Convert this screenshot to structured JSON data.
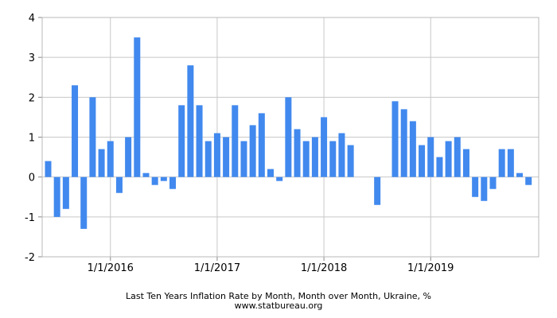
{
  "chart_data": {
    "type": "bar",
    "title": "Last Ten Years Inflation Rate by Month, Month over Month, Ukraine, %",
    "source": "www.statbureau.org",
    "xlabel": "",
    "ylabel": "",
    "ylim": [
      -2,
      4
    ],
    "yticks": [
      -2,
      -1,
      0,
      1,
      2,
      3,
      4
    ],
    "xticks": [
      {
        "label": "1/1/2016",
        "date": "2016-01"
      },
      {
        "label": "1/1/2017",
        "date": "2017-01"
      },
      {
        "label": "1/1/2018",
        "date": "2018-01"
      },
      {
        "label": "1/1/2019",
        "date": "2019-01"
      }
    ],
    "grid": true,
    "legend": "none",
    "bar_color": "#4189ee",
    "series": [
      {
        "x": [
          "2015-06",
          "2015-07",
          "2015-08",
          "2015-09",
          "2015-10",
          "2015-11",
          "2015-12",
          "2016-01",
          "2016-02",
          "2016-03",
          "2016-04",
          "2016-05",
          "2016-06",
          "2016-07",
          "2016-08",
          "2016-09",
          "2016-10",
          "2016-11",
          "2016-12",
          "2017-01",
          "2017-02",
          "2017-03",
          "2017-04",
          "2017-05",
          "2017-06",
          "2017-07",
          "2017-08",
          "2017-09",
          "2017-10",
          "2017-11",
          "2017-12",
          "2018-01",
          "2018-02",
          "2018-03",
          "2018-04",
          "2018-05",
          "2018-06",
          "2018-07",
          "2018-08",
          "2018-09",
          "2018-10",
          "2018-11",
          "2018-12",
          "2019-01",
          "2019-02",
          "2019-03",
          "2019-04",
          "2019-05",
          "2019-06",
          "2019-07",
          "2019-08",
          "2019-09",
          "2019-10",
          "2019-11",
          "2019-12"
        ],
        "values": [
          0.4,
          -1.0,
          -0.8,
          2.3,
          -1.3,
          2.0,
          0.7,
          0.9,
          -0.4,
          1.0,
          3.5,
          0.1,
          -0.2,
          -0.1,
          -0.3,
          1.8,
          2.8,
          1.8,
          0.9,
          1.1,
          1.0,
          1.8,
          0.9,
          1.3,
          1.6,
          0.2,
          -0.1,
          2.0,
          1.2,
          0.9,
          1.0,
          1.5,
          0.9,
          1.1,
          0.8,
          0.0,
          0.0,
          -0.7,
          0.0,
          1.9,
          1.7,
          1.4,
          0.8,
          1.0,
          0.5,
          0.9,
          1.0,
          0.7,
          -0.5,
          -0.6,
          -0.3,
          0.7,
          0.7,
          0.1,
          -0.2
        ]
      }
    ]
  }
}
